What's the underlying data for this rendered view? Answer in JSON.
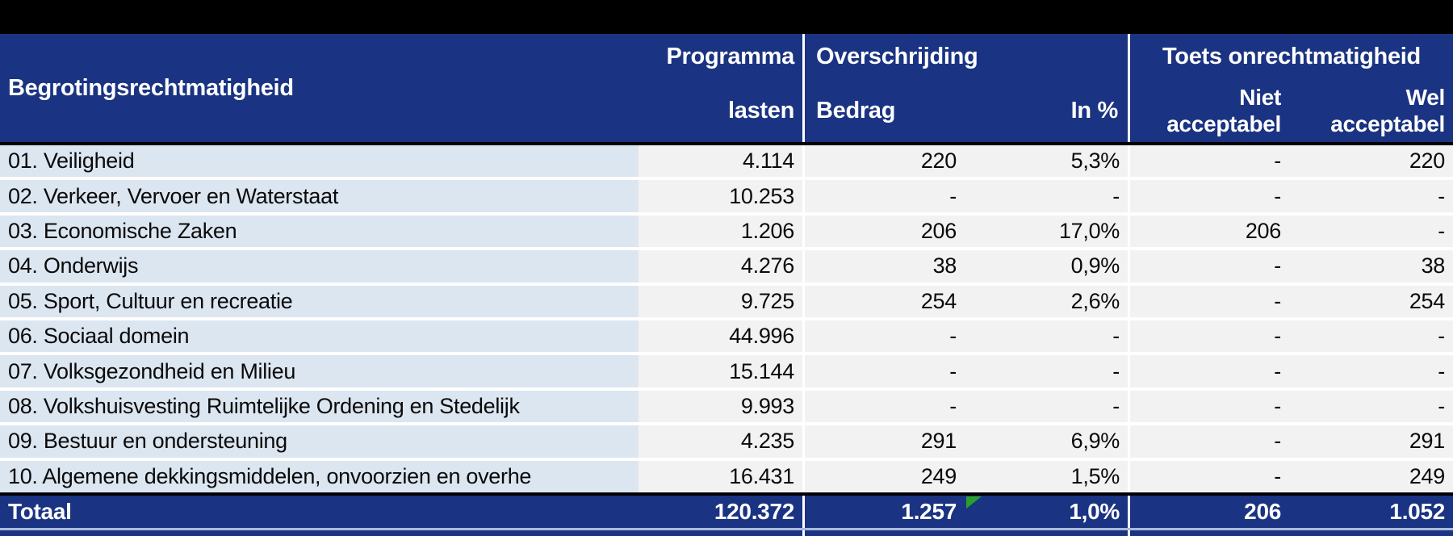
{
  "header": {
    "row_label_title": "Begrotingsrechtmatigheid",
    "programma_line1": "Programma",
    "programma_line2": "lasten",
    "overschrijding": "Overschrijding",
    "bedrag": "Bedrag",
    "in_pct": "In %",
    "toets": "Toets onrechtmatigheid",
    "niet_line1": "Niet",
    "niet_line2": "acceptabel",
    "wel_line1": "Wel",
    "wel_line2": "acceptabel"
  },
  "rows": [
    {
      "label": "01. Veiligheid",
      "lasten": "4.114",
      "bedrag": "220",
      "pct": "5,3%",
      "niet": "-",
      "wel": "220"
    },
    {
      "label": "02. Verkeer, Vervoer en Waterstaat",
      "lasten": "10.253",
      "bedrag": "-",
      "pct": "-",
      "niet": "-",
      "wel": "-"
    },
    {
      "label": "03. Economische Zaken",
      "lasten": "1.206",
      "bedrag": "206",
      "pct": "17,0%",
      "niet": "206",
      "wel": "-"
    },
    {
      "label": "04. Onderwijs",
      "lasten": "4.276",
      "bedrag": "38",
      "pct": "0,9%",
      "niet": "-",
      "wel": "38"
    },
    {
      "label": "05. Sport, Cultuur en recreatie",
      "lasten": "9.725",
      "bedrag": "254",
      "pct": "2,6%",
      "niet": "-",
      "wel": "254"
    },
    {
      "label": "06. Sociaal domein",
      "lasten": "44.996",
      "bedrag": "-",
      "pct": "-",
      "niet": "-",
      "wel": "-"
    },
    {
      "label": "07. Volksgezondheid en Milieu",
      "lasten": "15.144",
      "bedrag": "-",
      "pct": "-",
      "niet": "-",
      "wel": "-"
    },
    {
      "label": "08. Volkshuisvesting Ruimtelijke Ordening en Stedelijk",
      "lasten": "9.993",
      "bedrag": "-",
      "pct": "-",
      "niet": "-",
      "wel": "-"
    },
    {
      "label": "09. Bestuur en ondersteuning",
      "lasten": "4.235",
      "bedrag": "291",
      "pct": "6,9%",
      "niet": "-",
      "wel": "291"
    },
    {
      "label": "10. Algemene dekkingsmiddelen, onvoorzien en overhe",
      "lasten": "16.431",
      "bedrag": "249",
      "pct": "1,5%",
      "niet": "-",
      "wel": "249"
    }
  ],
  "total": {
    "label": "Totaal",
    "lasten": "120.372",
    "bedrag": "1.257",
    "pct": "1,0%",
    "niet": "206",
    "wel": "1.052"
  },
  "colors": {
    "header_blue": "#1a3382",
    "label_blue": "#dce6f1",
    "cell_gray": "#f2f2f2",
    "gridline": "#ffffff",
    "error_green": "#2aa02a",
    "page_bg": "#000000",
    "total_bottom_line": "#a9bbda"
  },
  "icons": {
    "error_indicator": "green-triangle-cell-error"
  }
}
